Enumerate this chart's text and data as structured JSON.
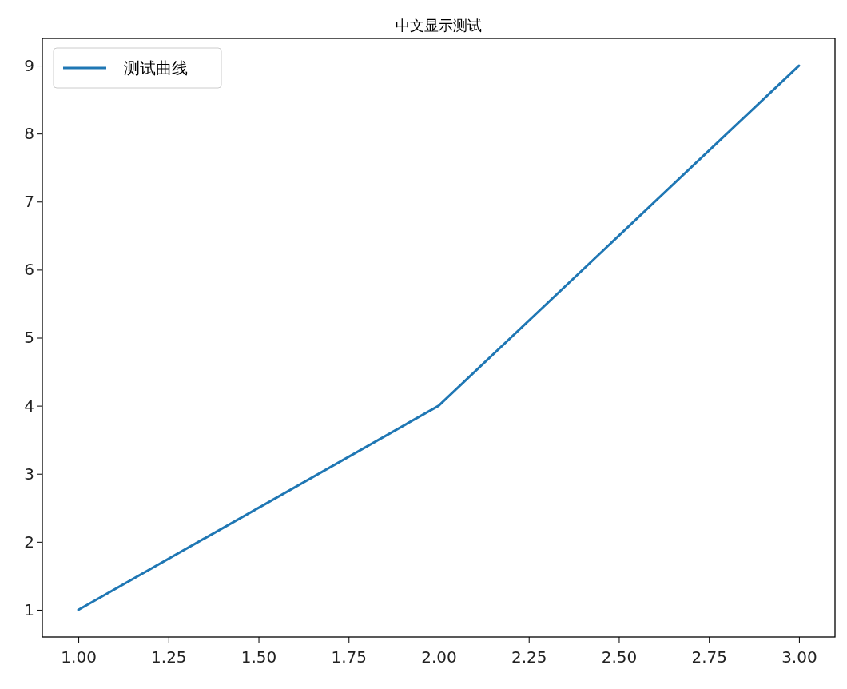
{
  "chart_data": {
    "type": "line",
    "title": "中文显示测试",
    "x": [
      1,
      2,
      3
    ],
    "series": [
      {
        "name": "测试曲线",
        "color": "#1f77b4",
        "values": [
          1,
          4,
          9
        ]
      }
    ],
    "xlim": [
      0.9,
      3.1
    ],
    "xticks": [
      {
        "value": 1,
        "label": "1.00"
      },
      {
        "value": 1.25,
        "label": "1.25"
      },
      {
        "value": 1.5,
        "label": "1.50"
      },
      {
        "value": 1.75,
        "label": "1.75"
      },
      {
        "value": 2,
        "label": "2.00"
      },
      {
        "value": 2.25,
        "label": "2.25"
      },
      {
        "value": 2.5,
        "label": "2.50"
      },
      {
        "value": 2.75,
        "label": "2.75"
      },
      {
        "value": 3,
        "label": "3.00"
      }
    ],
    "ylim": [
      0.6,
      9.4
    ],
    "yticks": [
      1,
      2,
      3,
      4,
      5,
      6,
      7,
      8,
      9
    ],
    "legend": "top left",
    "grid": false,
    "marker": "none",
    "line_style": "solid"
  }
}
